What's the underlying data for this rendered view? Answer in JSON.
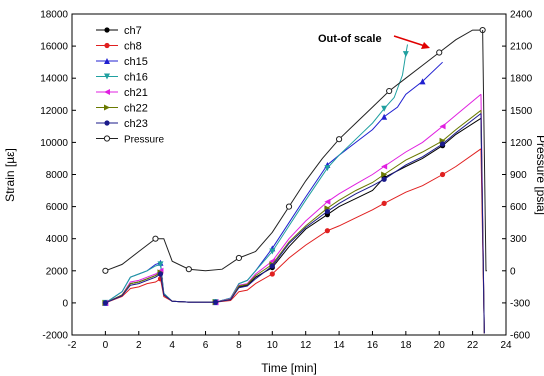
{
  "chart_data": {
    "type": "line",
    "title": "",
    "xlabel": "Time [min]",
    "ylabel": "Strain [µε]",
    "y2label": "Pressure [psia]",
    "xlim": [
      -2,
      24
    ],
    "ylim": [
      -2000,
      18000
    ],
    "y2lim": [
      -600,
      2400
    ],
    "x_ticks": [
      "-2",
      "0",
      "2",
      "4",
      "6",
      "8",
      "10",
      "12",
      "14",
      "16",
      "18",
      "20",
      "22",
      "24"
    ],
    "y_ticks": [
      "-2000",
      "0",
      "2000",
      "4000",
      "6000",
      "8000",
      "10000",
      "12000",
      "14000",
      "16000",
      "18000"
    ],
    "y2_ticks": [
      "-600",
      "-300",
      "0",
      "300",
      "600",
      "900",
      "1200",
      "1500",
      "1800",
      "2100",
      "2400"
    ],
    "grid": false,
    "legend_position": "top-left",
    "annotation": "Out-of scale",
    "series": [
      {
        "name": "ch7",
        "color": "#000000",
        "marker": "circle",
        "x": [
          0,
          1,
          1.5,
          2,
          2.5,
          3,
          3.3,
          3.5,
          4,
          5,
          6,
          6.6,
          7.5,
          8,
          8.5,
          9,
          10,
          11,
          12,
          13.3,
          14,
          15,
          16,
          16.7,
          18,
          19,
          20.2,
          21,
          22.5
        ],
        "y": [
          0,
          500,
          1200,
          1300,
          1500,
          1700,
          1900,
          500,
          100,
          50,
          50,
          50,
          200,
          1000,
          1100,
          1600,
          2200,
          3500,
          4600,
          5500,
          6000,
          6500,
          7000,
          7800,
          8500,
          9000,
          9800,
          10500,
          11500
        ]
      },
      {
        "name": "ch8",
        "color": "#e02020",
        "marker": "circle",
        "x": [
          0,
          1,
          1.5,
          2,
          2.5,
          3,
          3.3,
          3.5,
          4,
          5,
          6,
          6.6,
          7.5,
          8,
          8.5,
          9,
          10,
          11,
          12,
          13.3,
          14,
          15,
          16,
          16.7,
          18,
          19,
          20.2,
          21,
          22.5
        ],
        "y": [
          0,
          400,
          900,
          1000,
          1200,
          1300,
          1500,
          400,
          100,
          50,
          50,
          50,
          150,
          700,
          800,
          1200,
          1800,
          2800,
          3600,
          4500,
          4800,
          5300,
          5800,
          6200,
          6900,
          7300,
          8000,
          8500,
          9600
        ]
      },
      {
        "name": "ch15",
        "color": "#2020d0",
        "marker": "triangle",
        "x": [
          0,
          1,
          1.5,
          2,
          2.5,
          3,
          3.3,
          3.5,
          4,
          5,
          6,
          6.6,
          7.5,
          8,
          8.5,
          9,
          10,
          11,
          12,
          13.3,
          14,
          15,
          16,
          16.7,
          17.5,
          18,
          19,
          20.2
        ],
        "y": [
          0,
          700,
          1600,
          1800,
          2000,
          2400,
          2500,
          600,
          100,
          50,
          50,
          50,
          300,
          1200,
          1400,
          2000,
          3400,
          5000,
          6600,
          8600,
          9200,
          10000,
          10800,
          11600,
          12200,
          13000,
          13800,
          15000
        ]
      },
      {
        "name": "ch16",
        "color": "#20a0a0",
        "marker": "triangle-down",
        "x": [
          0,
          1,
          1.5,
          2,
          2.5,
          3,
          3.3,
          3.5,
          4,
          5,
          6,
          6.6,
          7.5,
          8,
          8.5,
          9,
          10,
          11,
          12,
          13.3,
          14,
          15,
          16,
          16.7,
          17.3,
          17.8,
          18,
          18.1
        ],
        "y": [
          0,
          700,
          1600,
          1800,
          2000,
          2300,
          2400,
          600,
          100,
          50,
          50,
          50,
          300,
          1200,
          1400,
          2000,
          3200,
          4800,
          6400,
          8400,
          9200,
          10200,
          11200,
          12100,
          12800,
          14200,
          15500,
          16100
        ]
      },
      {
        "name": "ch21",
        "color": "#e020e0",
        "marker": "triangle-left",
        "x": [
          0,
          1,
          1.5,
          2,
          2.5,
          3,
          3.3,
          3.5,
          4,
          5,
          6,
          6.6,
          7.5,
          8,
          8.5,
          9,
          10,
          11,
          12,
          13.3,
          14,
          15,
          16,
          16.7,
          18,
          19,
          20.2,
          21,
          22.5
        ],
        "y": [
          0,
          500,
          1300,
          1400,
          1600,
          1800,
          2000,
          500,
          100,
          50,
          50,
          50,
          250,
          1100,
          1200,
          1800,
          2600,
          4000,
          5100,
          6300,
          6800,
          7400,
          8000,
          8500,
          9400,
          10000,
          11000,
          11700,
          13000
        ]
      },
      {
        "name": "ch22",
        "color": "#6a7a00",
        "marker": "triangle-right",
        "x": [
          0,
          1,
          1.5,
          2,
          2.5,
          3,
          3.3,
          3.5,
          4,
          5,
          6,
          6.6,
          7.5,
          8,
          8.5,
          9,
          10,
          11,
          12,
          13.3,
          14,
          15,
          16,
          16.7,
          18,
          19,
          20.2,
          21,
          22.5
        ],
        "y": [
          0,
          500,
          1200,
          1300,
          1500,
          1700,
          1900,
          500,
          100,
          50,
          50,
          50,
          220,
          1050,
          1150,
          1700,
          2400,
          3800,
          4800,
          5900,
          6400,
          7000,
          7500,
          8000,
          8900,
          9400,
          10100,
          10800,
          12000
        ]
      },
      {
        "name": "ch23",
        "color": "#1a1a8a",
        "marker": "circle",
        "x": [
          0,
          1,
          1.5,
          2,
          2.5,
          3,
          3.3,
          3.5,
          4,
          5,
          6,
          6.6,
          7.5,
          8,
          8.5,
          9,
          10,
          11,
          12,
          13.3,
          14,
          15,
          16,
          16.7,
          18,
          19,
          20.2,
          21,
          22.5
        ],
        "y": [
          0,
          450,
          1100,
          1200,
          1400,
          1600,
          1800,
          500,
          100,
          50,
          50,
          50,
          200,
          950,
          1050,
          1500,
          2300,
          3700,
          4700,
          5700,
          6200,
          6800,
          7300,
          7700,
          8600,
          9100,
          9900,
          10600,
          11800
        ]
      },
      {
        "name": "Pressure",
        "color": "#222222",
        "marker": "open-circle",
        "axis": "y2",
        "x": [
          0,
          1,
          2,
          3,
          3.5,
          4,
          5,
          6,
          7,
          8,
          9,
          10,
          11,
          12,
          13,
          14,
          15,
          16,
          17,
          18,
          19,
          20,
          21,
          22,
          22.6
        ],
        "y": [
          0,
          60,
          180,
          300,
          300,
          90,
          15,
          0,
          15,
          120,
          180,
          360,
          600,
          840,
          1050,
          1230,
          1380,
          1530,
          1680,
          1800,
          1920,
          2040,
          2160,
          2250,
          2250
        ]
      }
    ]
  }
}
